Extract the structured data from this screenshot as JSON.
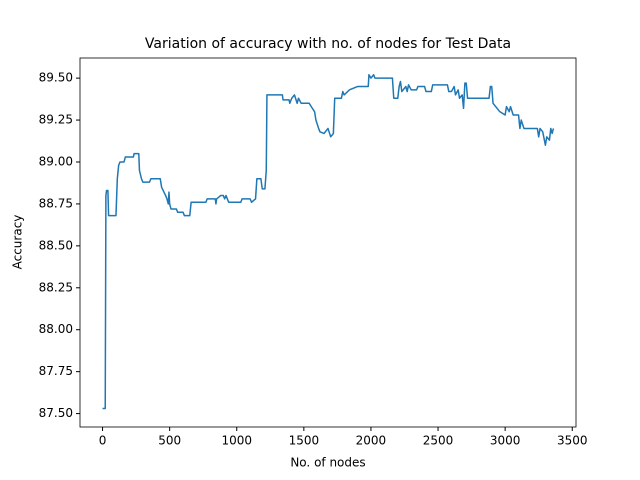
{
  "chart_data": {
    "type": "line",
    "title": "Variation of accuracy with no. of nodes for Test Data",
    "x_label": "No. of nodes",
    "y_label": "Accuracy",
    "x": [
      0,
      20,
      25,
      30,
      40,
      45,
      90,
      100,
      110,
      120,
      130,
      160,
      170,
      230,
      235,
      270,
      275,
      290,
      300,
      350,
      360,
      430,
      440,
      470,
      480,
      490,
      495,
      500,
      510,
      550,
      560,
      600,
      610,
      650,
      660,
      770,
      780,
      840,
      845,
      850,
      880,
      900,
      910,
      920,
      940,
      1030,
      1040,
      1100,
      1110,
      1140,
      1150,
      1180,
      1190,
      1210,
      1220,
      1225,
      1340,
      1345,
      1390,
      1395,
      1410,
      1430,
      1450,
      1460,
      1480,
      1540,
      1555,
      1580,
      1590,
      1610,
      1620,
      1650,
      1680,
      1700,
      1720,
      1730,
      1780,
      1790,
      1800,
      1840,
      1900,
      1980,
      1985,
      2000,
      2020,
      2030,
      2160,
      2170,
      2200,
      2210,
      2220,
      2230,
      2260,
      2270,
      2280,
      2300,
      2340,
      2350,
      2400,
      2410,
      2450,
      2460,
      2570,
      2580,
      2600,
      2620,
      2630,
      2650,
      2660,
      2680,
      2690,
      2700,
      2710,
      2720,
      2880,
      2890,
      2900,
      2910,
      2960,
      3000,
      3010,
      3030,
      3040,
      3060,
      3100,
      3110,
      3120,
      3140,
      3240,
      3250,
      3260,
      3280,
      3300,
      3310,
      3330,
      3340,
      3350,
      3360
    ],
    "series": [
      {
        "name": "accuracy",
        "color": "#1f77b4",
        "values": [
          87.53,
          87.53,
          88.8,
          88.83,
          88.83,
          88.68,
          88.68,
          88.68,
          88.9,
          88.98,
          89.0,
          89.0,
          89.03,
          89.03,
          89.05,
          89.05,
          88.95,
          88.9,
          88.88,
          88.88,
          88.9,
          88.9,
          88.85,
          88.8,
          88.78,
          88.75,
          88.82,
          88.75,
          88.72,
          88.72,
          88.7,
          88.7,
          88.68,
          88.68,
          88.76,
          88.76,
          88.78,
          88.78,
          88.75,
          88.78,
          88.8,
          88.8,
          88.78,
          88.8,
          88.76,
          88.76,
          88.78,
          88.78,
          88.76,
          88.78,
          88.9,
          88.9,
          88.84,
          88.84,
          88.95,
          89.4,
          89.4,
          89.37,
          89.37,
          89.35,
          89.38,
          89.4,
          89.35,
          89.38,
          89.35,
          89.35,
          89.33,
          89.3,
          89.25,
          89.2,
          89.18,
          89.17,
          89.2,
          89.15,
          89.17,
          89.38,
          89.38,
          89.42,
          89.4,
          89.43,
          89.45,
          89.45,
          89.52,
          89.5,
          89.52,
          89.5,
          89.5,
          89.38,
          89.38,
          89.45,
          89.48,
          89.42,
          89.45,
          89.42,
          89.46,
          89.43,
          89.43,
          89.45,
          89.45,
          89.42,
          89.42,
          89.46,
          89.46,
          89.42,
          89.42,
          89.45,
          89.4,
          89.43,
          89.38,
          89.4,
          89.32,
          89.47,
          89.47,
          89.38,
          89.38,
          89.45,
          89.45,
          89.35,
          89.3,
          89.28,
          89.33,
          89.3,
          89.33,
          89.28,
          89.28,
          89.2,
          89.25,
          89.2,
          89.2,
          89.15,
          89.2,
          89.18,
          89.1,
          89.15,
          89.13,
          89.2,
          89.17,
          89.2
        ]
      }
    ],
    "xlim": [
      -168,
      3528
    ],
    "ylim": [
      87.42,
      89.62
    ],
    "xticks": [
      0,
      500,
      1000,
      1500,
      2000,
      2500,
      3000,
      3500
    ],
    "yticks": [
      {
        "value": 87.5,
        "label": "87.50"
      },
      {
        "value": 87.75,
        "label": "87.75"
      },
      {
        "value": 88.0,
        "label": "88.00"
      },
      {
        "value": 88.25,
        "label": "88.25"
      },
      {
        "value": 88.5,
        "label": "88.50"
      },
      {
        "value": 88.75,
        "label": "88.75"
      },
      {
        "value": 89.0,
        "label": "89.00"
      },
      {
        "value": 89.25,
        "label": "89.25"
      },
      {
        "value": 89.5,
        "label": "89.50"
      }
    ],
    "grid": false
  }
}
